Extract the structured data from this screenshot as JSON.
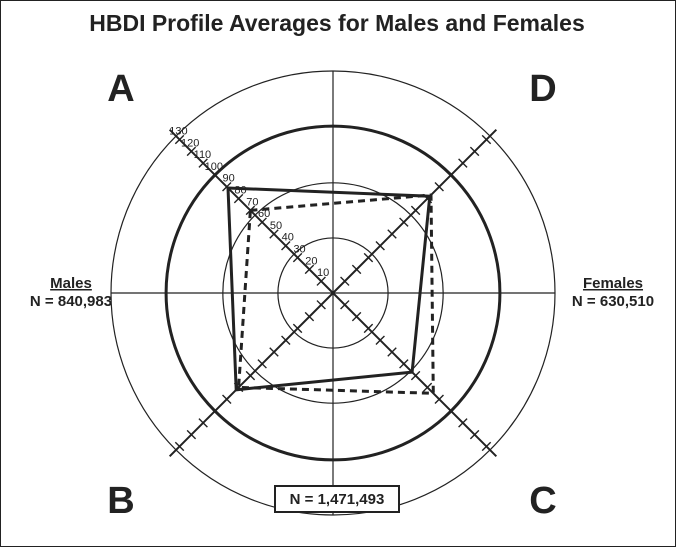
{
  "chart_data": {
    "type": "radar",
    "title": "HBDI Profile Averages for Males and Females",
    "quadrants": [
      "A",
      "B",
      "C",
      "D"
    ],
    "axis_ticks": [
      10,
      20,
      30,
      40,
      50,
      60,
      70,
      80,
      90,
      100,
      110,
      120,
      130
    ],
    "rings": [
      {
        "value": 33,
        "style": "thin"
      },
      {
        "value": 66,
        "style": "thin"
      },
      {
        "value": 100,
        "style": "bold"
      },
      {
        "value": 133,
        "style": "thin"
      }
    ],
    "grid": true,
    "left_group": {
      "name": "Males",
      "n": "N = 840,983"
    },
    "right_group": {
      "name": "Females",
      "n": "N = 630,510"
    },
    "total_label": "N = 1,471,493",
    "series": [
      {
        "name": "Males",
        "style": "solid",
        "values": {
          "A": 89,
          "B": 82,
          "C": 67,
          "D": 82
        }
      },
      {
        "name": "Females",
        "style": "dashed",
        "values": {
          "A": 70,
          "B": 80,
          "C": 85,
          "D": 83
        }
      }
    ],
    "colors": {
      "line": "#222222",
      "background": "#ffffff"
    }
  }
}
